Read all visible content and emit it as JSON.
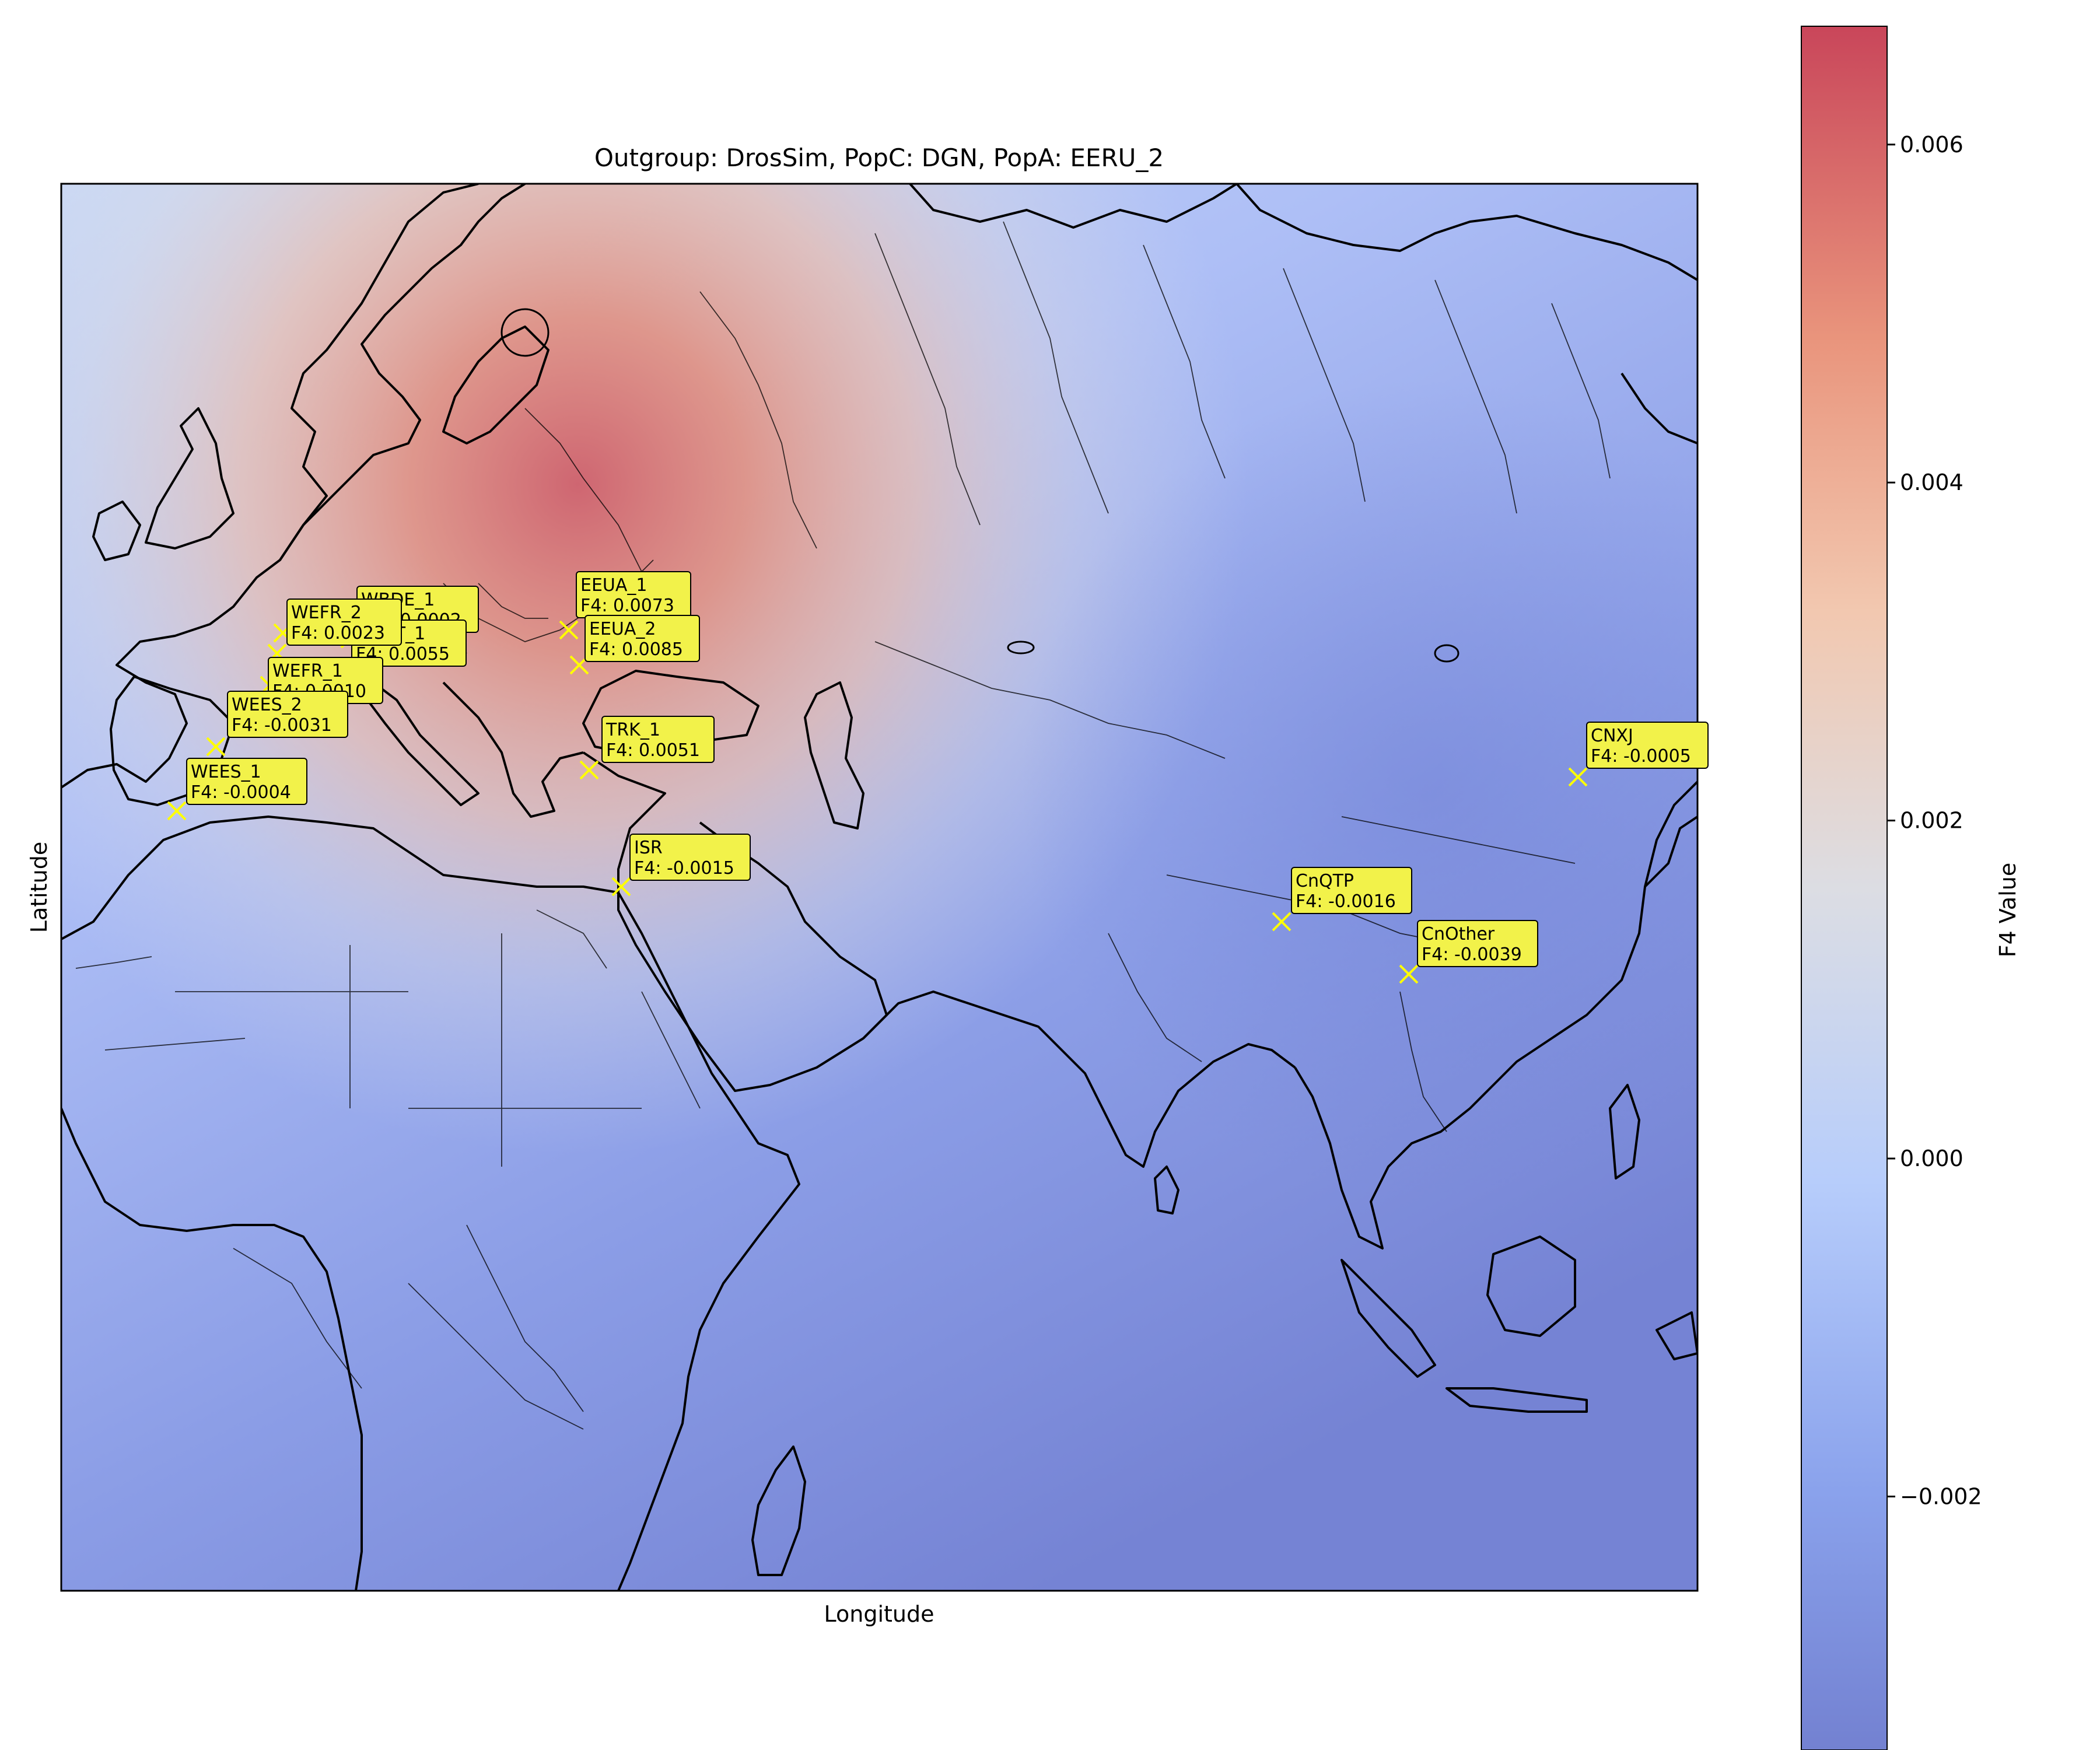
{
  "title": "Outgroup: DrosSim, PopC: DGN, PopA: EERU_2",
  "xlabel": "Longitude",
  "ylabel": "Latitude",
  "colorbar": {
    "label": "F4 Value",
    "ticks": [
      "0.006",
      "0.004",
      "0.002",
      "0.000",
      "−0.002"
    ],
    "tick_values": [
      0.006,
      0.004,
      0.002,
      0.0,
      -0.002
    ],
    "range": [
      -0.0035,
      0.0067
    ],
    "colormap": "coolwarm"
  },
  "marker_color": "#ffff00",
  "label_box_color": "#f2f24a",
  "populations": [
    {
      "name": "WBDE_1",
      "f4": "F4: -0.0002"
    },
    {
      "name": "WEFR_2",
      "f4": "F4: 0.0023"
    },
    {
      "name": "WEAT_1",
      "f4": "F4: 0.0055"
    },
    {
      "name": "WEFR_1",
      "f4": "F4: 0.0010"
    },
    {
      "name": "WEES_2",
      "f4": "F4: -0.0031"
    },
    {
      "name": "WEES_1",
      "f4": "F4: -0.0004"
    },
    {
      "name": "EEUA_1",
      "f4": "F4: 0.0073"
    },
    {
      "name": "EEUA_2",
      "f4": "F4: 0.0085"
    },
    {
      "name": "TRK_1",
      "f4": "F4: 0.0051"
    },
    {
      "name": "ISR",
      "f4": "F4: -0.0015"
    },
    {
      "name": "CnQTP",
      "f4": "F4: -0.0016"
    },
    {
      "name": "CnOther",
      "f4": "F4: -0.0039"
    },
    {
      "name": "CNXJ",
      "f4": "F4: -0.0005"
    }
  ]
}
